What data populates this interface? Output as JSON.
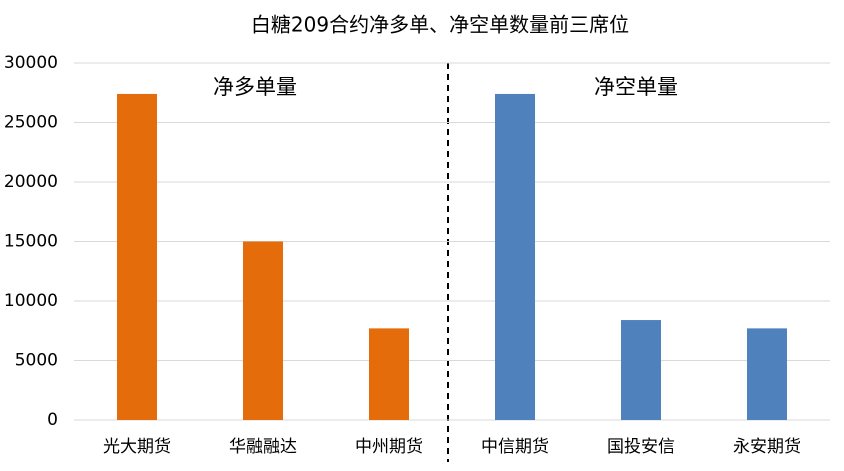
{
  "chart_data": {
    "type": "bar",
    "title": "白糖209合约净多单、净空单数量前三席位",
    "categories": [
      "光大期货",
      "华融融达",
      "中州期货",
      "中信期货",
      "国投安信",
      "永安期货"
    ],
    "values": [
      27400,
      15000,
      7700,
      27400,
      8400,
      7700
    ],
    "colors": [
      "#e46c0a",
      "#e46c0a",
      "#e46c0a",
      "#4f81bd",
      "#4f81bd",
      "#4f81bd"
    ],
    "annotations": [
      "净多单量",
      "净空单量"
    ],
    "ylim": [
      0,
      30000
    ],
    "yticks": [
      0,
      5000,
      10000,
      15000,
      20000,
      25000,
      30000
    ],
    "grid": true
  }
}
